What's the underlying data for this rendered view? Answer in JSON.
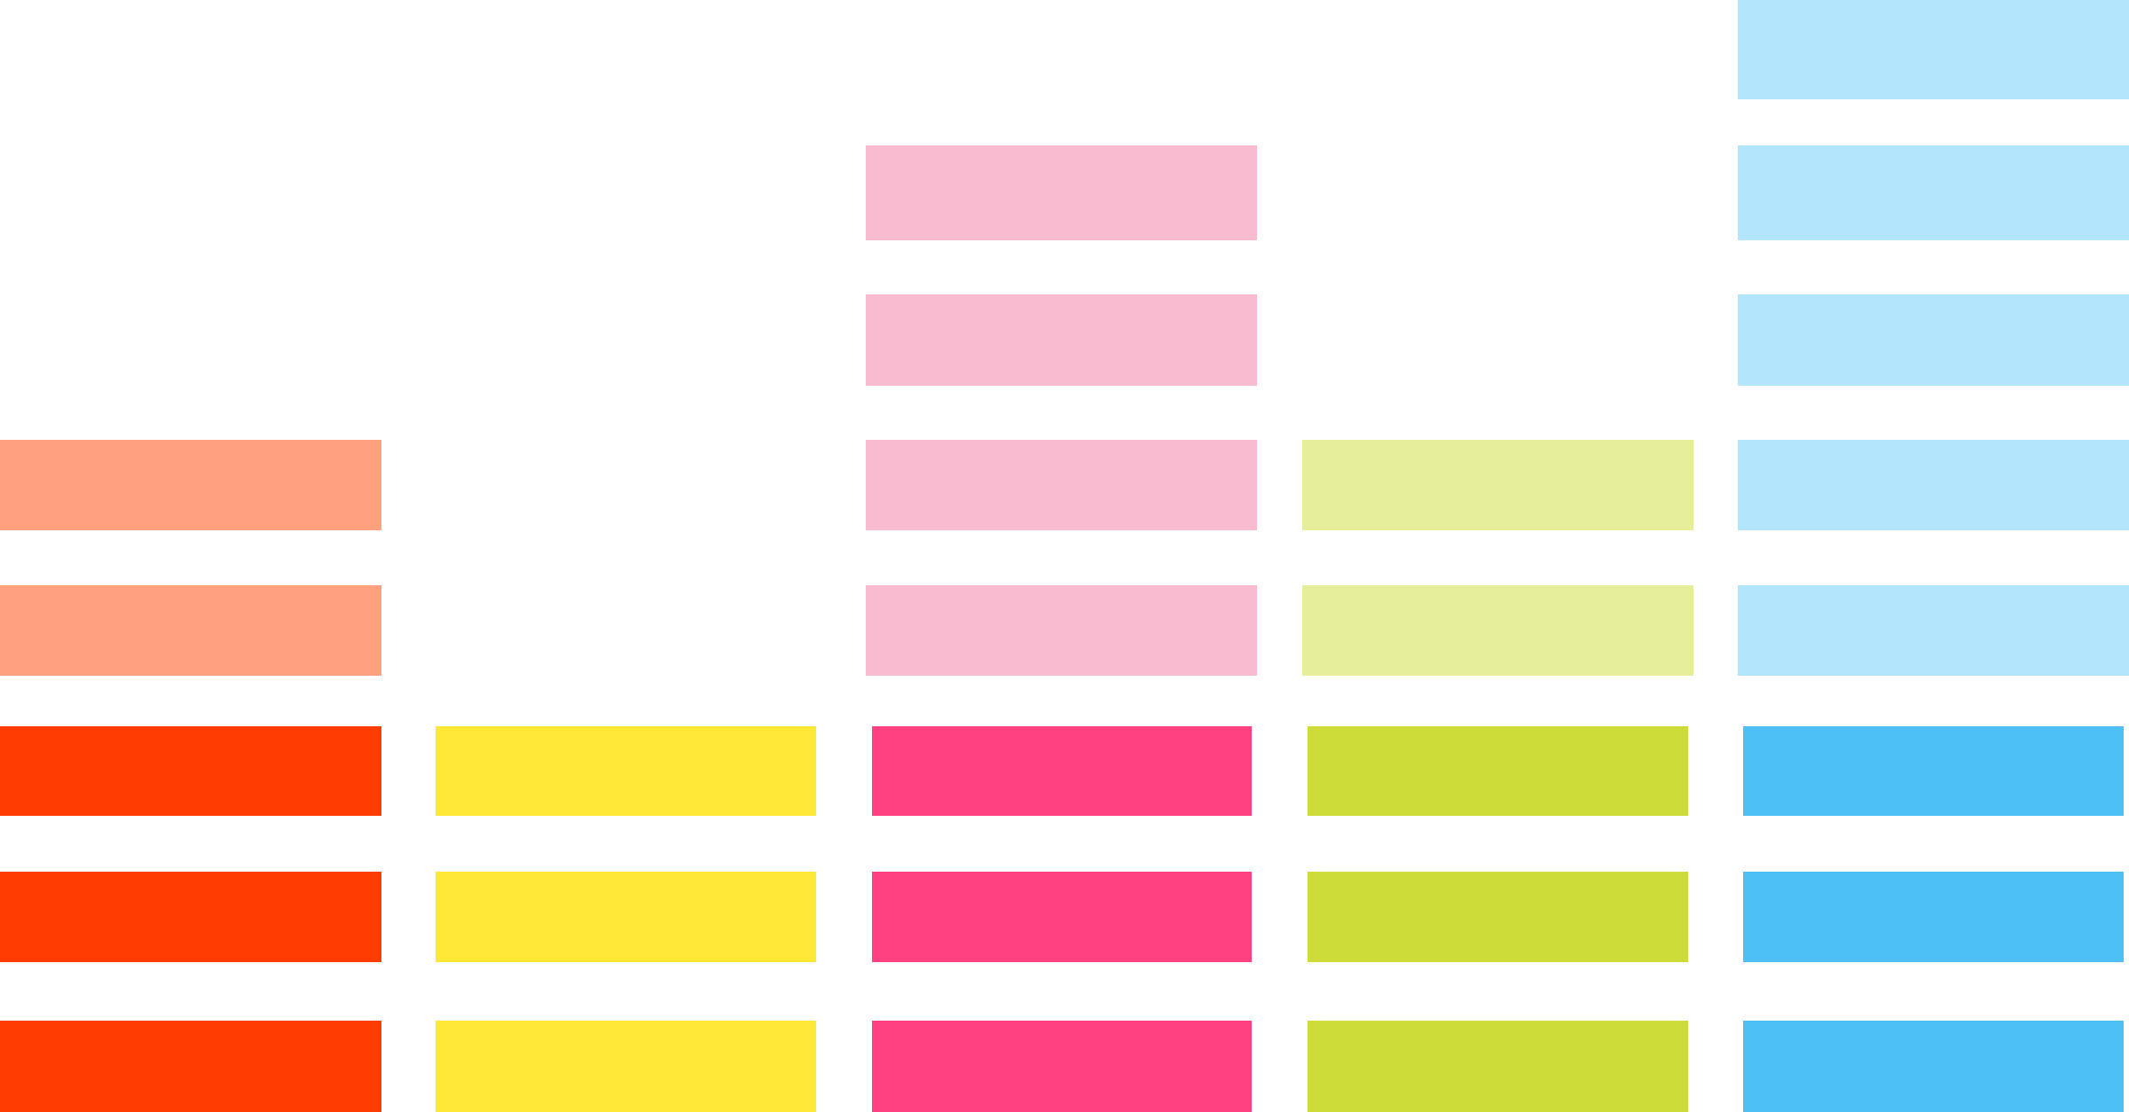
{
  "graphic": {
    "type": "equalizer-bars",
    "columns": [
      {
        "dark_color": "#FF3D00",
        "light_color": "#FFA07F",
        "dark_segments": 3,
        "light_segments": 2
      },
      {
        "dark_color": "#FFE838",
        "light_color": "#FFF59D",
        "dark_segments": 3,
        "light_segments": 0
      },
      {
        "dark_color": "#FF4081",
        "light_color": "#F8BBD0",
        "dark_segments": 3,
        "light_segments": 4
      },
      {
        "dark_color": "#CDDC39",
        "light_color": "#E6EE9C",
        "dark_segments": 3,
        "light_segments": 2
      },
      {
        "dark_color": "#4DC0F5",
        "light_color": "#B3E5FC",
        "dark_segments": 3,
        "light_segments": 5
      }
    ]
  }
}
